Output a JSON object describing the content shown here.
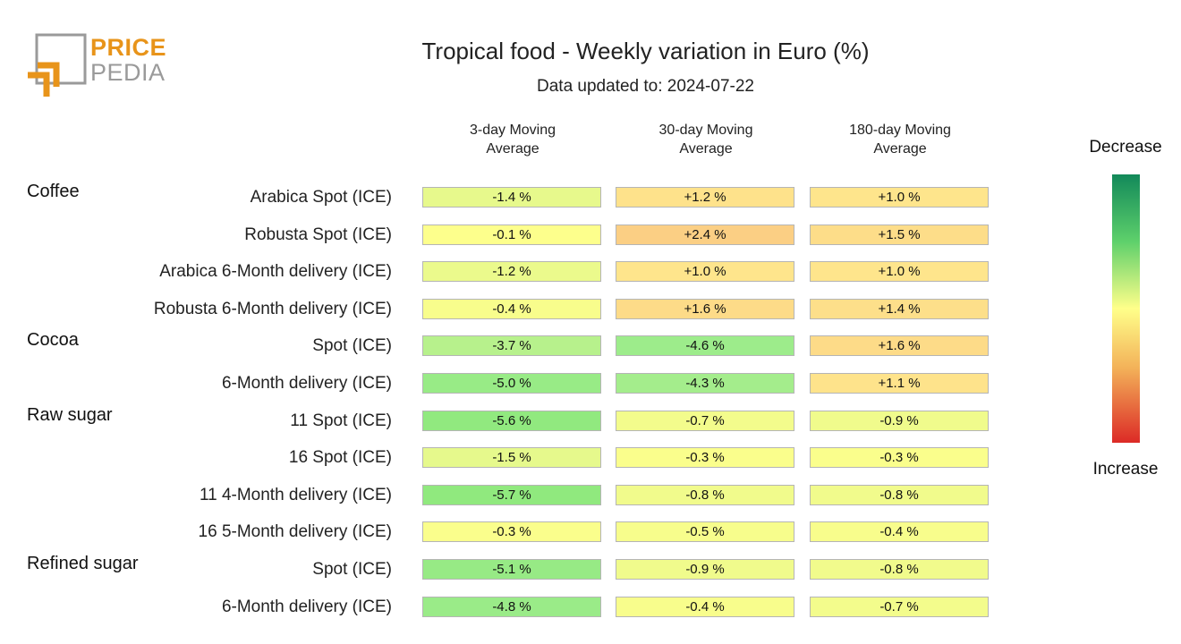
{
  "logo": {
    "line1": "PRICE",
    "line2": "PEDIA"
  },
  "title": "Tropical food - Weekly variation in Euro (%)",
  "subtitle": "Data updated to: 2024-07-22",
  "legend": {
    "top": "Decrease",
    "bottom": "Increase"
  },
  "column_headers": [
    {
      "line1": "3-day Moving",
      "line2": "Average"
    },
    {
      "line1": "30-day Moving",
      "line2": "Average"
    },
    {
      "line1": "180-day Moving",
      "line2": "Average"
    }
  ],
  "groups": [
    "Coffee",
    "Cocoa",
    "Raw sugar",
    "Refined sugar"
  ],
  "chart_data": {
    "type": "table",
    "title": "Tropical food - Weekly variation in Euro (%)",
    "columns": [
      "3-day Moving Average",
      "30-day Moving Average",
      "180-day Moving Average"
    ],
    "color_scale": {
      "low": "#12895a",
      "mid": "#ffff8a",
      "high": "#dc2a26",
      "low_label": "Decrease",
      "high_label": "Increase"
    },
    "rows": [
      {
        "group": "Coffee",
        "label": "Arabica Spot (ICE)",
        "values": [
          -1.4,
          1.2,
          1.0
        ],
        "text": [
          "-1.4 %",
          "+1.2 %",
          "+1.0 %"
        ]
      },
      {
        "group": "Coffee",
        "label": "Robusta Spot (ICE)",
        "values": [
          -0.1,
          2.4,
          1.5
        ],
        "text": [
          "-0.1 %",
          "+2.4 %",
          "+1.5 %"
        ]
      },
      {
        "group": "Coffee",
        "label": "Arabica 6-Month delivery (ICE)",
        "values": [
          -1.2,
          1.0,
          1.0
        ],
        "text": [
          "-1.2 %",
          "+1.0 %",
          "+1.0 %"
        ]
      },
      {
        "group": "Coffee",
        "label": "Robusta 6-Month delivery (ICE)",
        "values": [
          -0.4,
          1.6,
          1.4
        ],
        "text": [
          "-0.4 %",
          "+1.6 %",
          "+1.4 %"
        ]
      },
      {
        "group": "Cocoa",
        "label": "Spot (ICE)",
        "values": [
          -3.7,
          -4.6,
          1.6
        ],
        "text": [
          "-3.7 %",
          "-4.6 %",
          "+1.6 %"
        ]
      },
      {
        "group": "Cocoa",
        "label": "6-Month delivery (ICE)",
        "values": [
          -5.0,
          -4.3,
          1.1
        ],
        "text": [
          "-5.0 %",
          "-4.3 %",
          "+1.1 %"
        ]
      },
      {
        "group": "Raw sugar",
        "label": "11 Spot (ICE)",
        "values": [
          -5.6,
          -0.7,
          -0.9
        ],
        "text": [
          "-5.6 %",
          "-0.7 %",
          "-0.9 %"
        ]
      },
      {
        "group": "Raw sugar",
        "label": "16 Spot (ICE)",
        "values": [
          -1.5,
          -0.3,
          -0.3
        ],
        "text": [
          "-1.5 %",
          "-0.3 %",
          "-0.3 %"
        ]
      },
      {
        "group": "Raw sugar",
        "label": "11 4-Month delivery (ICE)",
        "values": [
          -5.7,
          -0.8,
          -0.8
        ],
        "text": [
          "-5.7 %",
          "-0.8 %",
          "-0.8 %"
        ]
      },
      {
        "group": "Raw sugar",
        "label": "16 5-Month delivery (ICE)",
        "values": [
          -0.3,
          -0.5,
          -0.4
        ],
        "text": [
          "-0.3 %",
          "-0.5 %",
          "-0.4 %"
        ]
      },
      {
        "group": "Refined sugar",
        "label": "Spot (ICE)",
        "values": [
          -5.1,
          -0.9,
          -0.8
        ],
        "text": [
          "-5.1 %",
          "-0.9 %",
          "-0.8 %"
        ]
      },
      {
        "group": "Refined sugar",
        "label": "6-Month delivery (ICE)",
        "values": [
          -4.8,
          -0.4,
          -0.7
        ],
        "text": [
          "-4.8 %",
          "-0.4 %",
          "-0.7 %"
        ]
      }
    ]
  }
}
